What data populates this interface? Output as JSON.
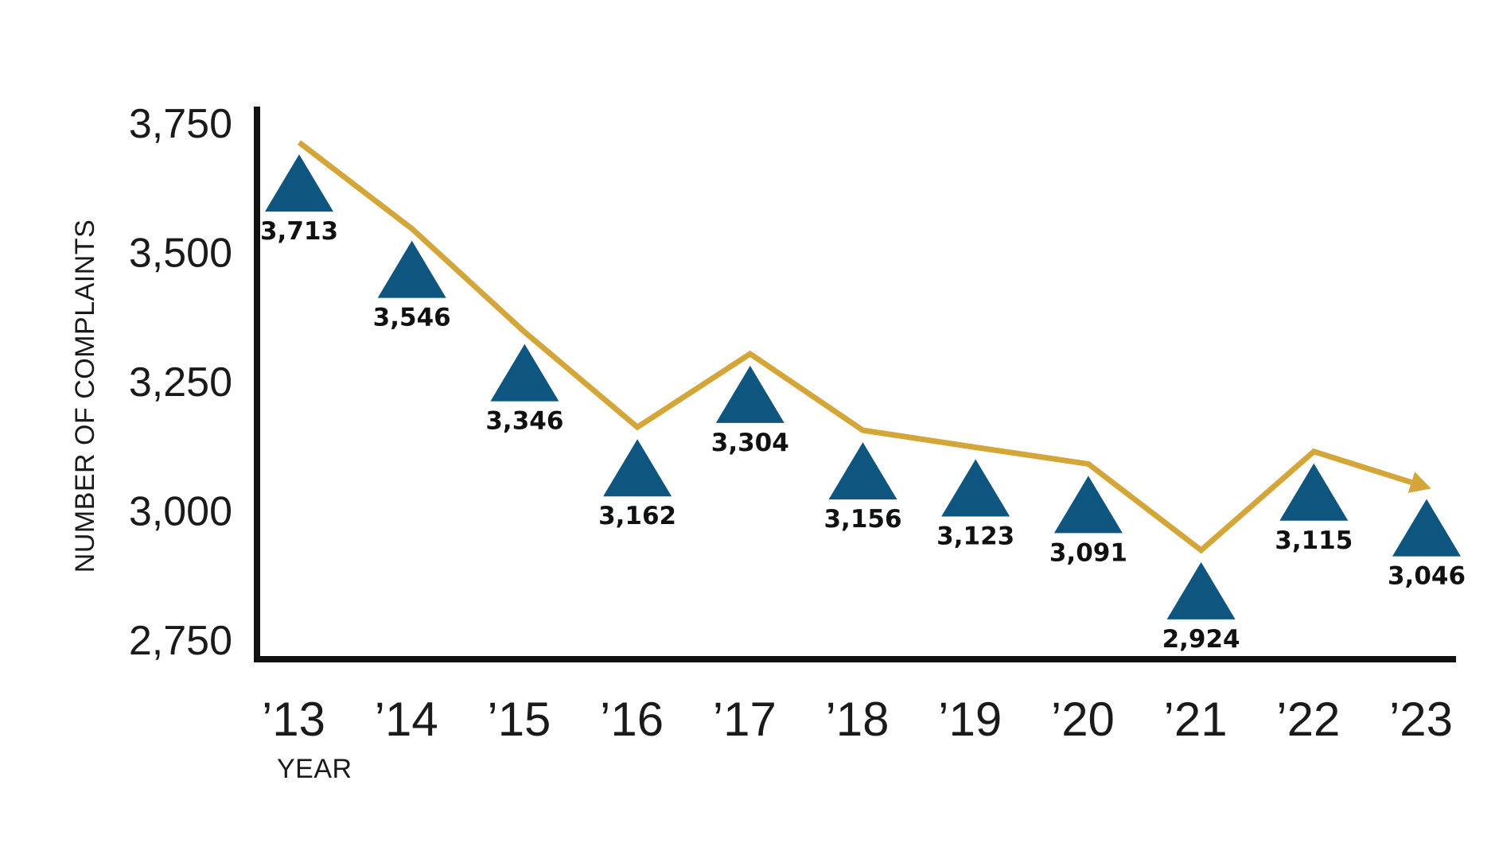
{
  "chart_data": {
    "type": "line",
    "x": [
      "’13",
      "’14",
      "’15",
      "’16",
      "’17",
      "’18",
      "’19",
      "’20",
      "’21",
      "’22",
      "’23"
    ],
    "xlabel": "YEAR",
    "ylabel": "NUMBER OF COMPLAINTS",
    "ylim": [
      2750,
      3750
    ],
    "yticks": [
      "3,750",
      "3,500",
      "3,250",
      "3,000",
      "2,750"
    ],
    "grid": false,
    "series": [
      {
        "values": [
          3713,
          3546,
          3346,
          3162,
          3304,
          3156,
          3123,
          3091,
          2924,
          3115,
          3046
        ],
        "labels": [
          "3,713",
          "3,546",
          "3,346",
          "3,162",
          "3,304",
          "3,156",
          "3,123",
          "3,091",
          "2,924",
          "3,115",
          "3,046"
        ]
      }
    ],
    "colors": {
      "line": "#d4a63a",
      "marker": "#0e5580",
      "axis": "#111111"
    },
    "marker_icon": "triangle-icon",
    "line_end": "arrow-icon"
  }
}
